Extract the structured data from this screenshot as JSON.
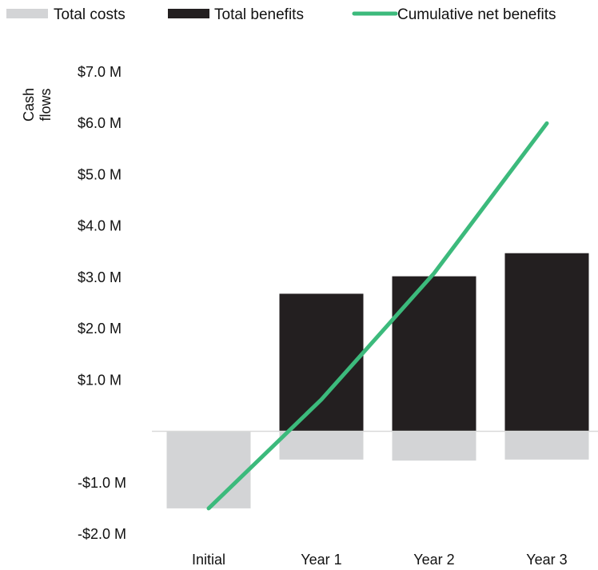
{
  "chart_data": {
    "type": "bar",
    "title": "",
    "xlabel": "",
    "ylabel_line1": "Cash",
    "ylabel_line2": "flows",
    "categories": [
      "Initial",
      "Year 1",
      "Year 2",
      "Year 3"
    ],
    "ylim": [
      -2.0,
      7.0
    ],
    "yticks": [
      -2.0,
      -1.0,
      1.0,
      2.0,
      3.0,
      4.0,
      5.0,
      6.0,
      7.0
    ],
    "ytick_labels": [
      "-$2.0 M",
      "-$1.0 M",
      "$1.0 M",
      "$2.0 M",
      "$3.0 M",
      "$4.0 M",
      "$5.0 M",
      "$6.0 M",
      "$7.0 M"
    ],
    "grid": false,
    "legend_position": "top",
    "series": [
      {
        "name": "Total costs",
        "kind": "bar",
        "color": "#d3d4d6",
        "values": [
          -1.5,
          -0.55,
          -0.57,
          -0.55
        ]
      },
      {
        "name": "Total benefits",
        "kind": "bar",
        "color": "#231f20",
        "values": [
          0.0,
          2.68,
          3.02,
          3.47
        ]
      },
      {
        "name": "Cumulative net benefits",
        "kind": "line",
        "color": "#3cba7c",
        "values": [
          -1.5,
          0.62,
          3.08,
          6.0
        ]
      }
    ]
  }
}
